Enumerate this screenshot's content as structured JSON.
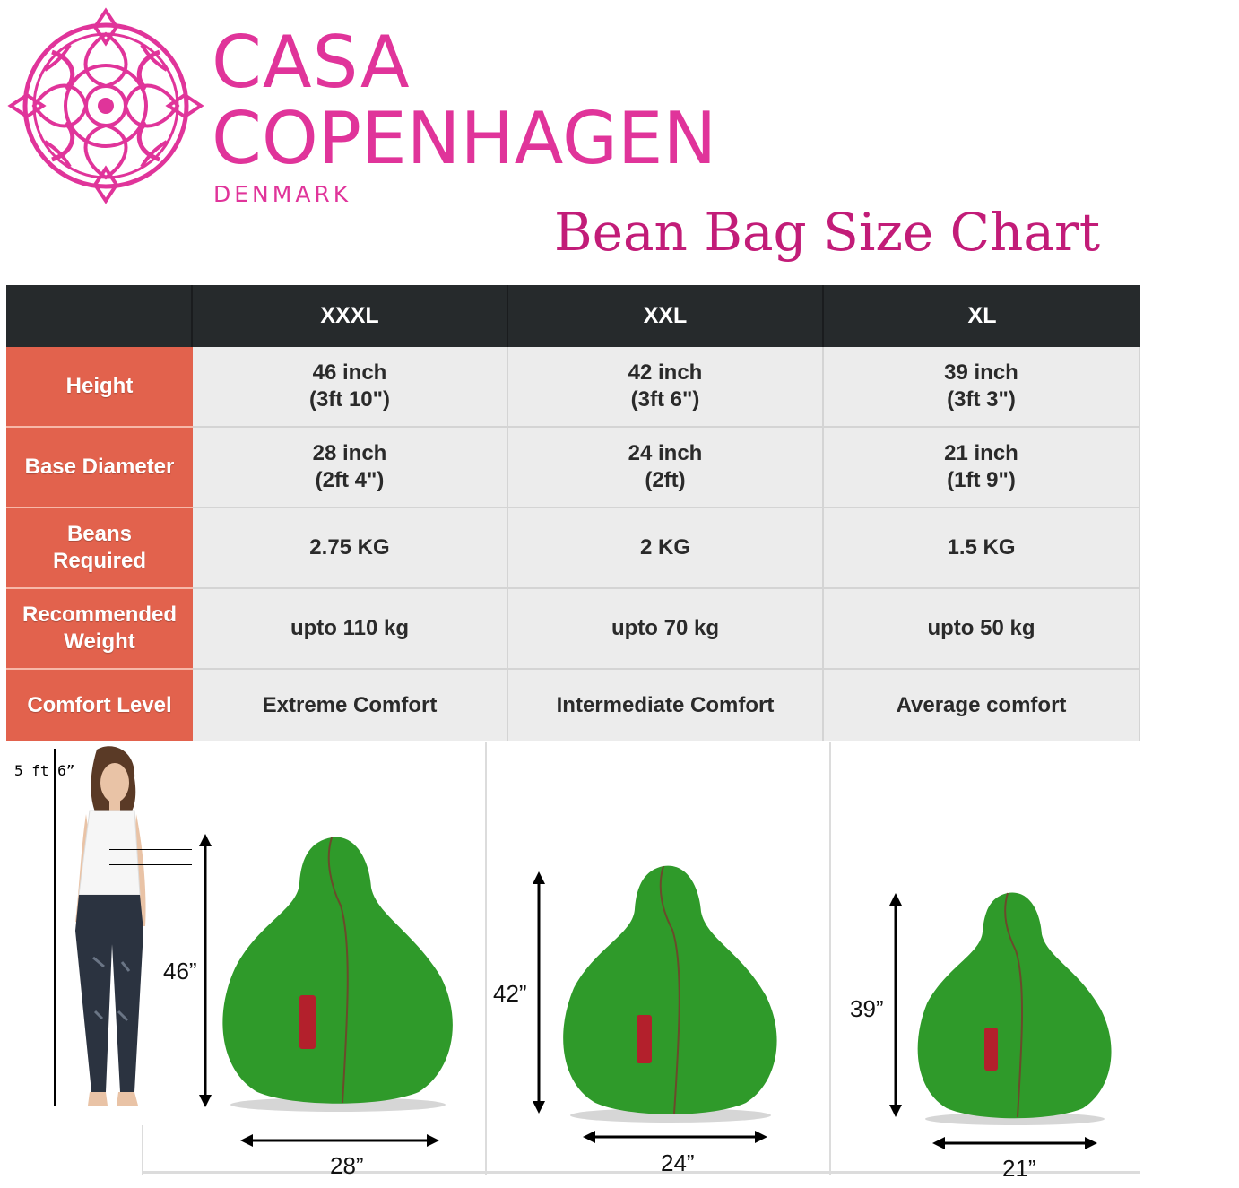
{
  "brand": {
    "line1": "CASA",
    "line2": "COPENHAGEN",
    "line3": "DENMARK",
    "logo_icon": "ornamental-medallion-icon",
    "color": "#e0349a"
  },
  "title": "Bean Bag Size Chart",
  "table": {
    "columns": [
      "XXXL",
      "XXL",
      "XL"
    ],
    "rows": [
      {
        "label": "Height",
        "cells": [
          [
            "46 inch",
            "(3ft 10\")"
          ],
          [
            "42 inch",
            "(3ft 6\")"
          ],
          [
            "39 inch",
            "(3ft 3\")"
          ]
        ]
      },
      {
        "label": "Base Diameter",
        "cells": [
          [
            "28 inch",
            "(2ft 4\")"
          ],
          [
            "24 inch",
            "(2ft)"
          ],
          [
            "21 inch",
            "(1ft 9\")"
          ]
        ]
      },
      {
        "label": "Beans Required",
        "cells": [
          [
            "2.75 KG"
          ],
          [
            "2 KG"
          ],
          [
            "1.5 KG"
          ]
        ]
      },
      {
        "label": "Recommended Weight",
        "cells": [
          [
            "upto 110 kg"
          ],
          [
            "upto 70 kg"
          ],
          [
            "upto 50 kg"
          ]
        ]
      },
      {
        "label": "Comfort Level",
        "cells": [
          [
            "Extreme Comfort"
          ],
          [
            "Intermediate Comfort"
          ],
          [
            "Average comfort"
          ]
        ]
      }
    ],
    "colors": {
      "header": "#262a2c",
      "label": "#e2624d",
      "cell": "#ececec"
    }
  },
  "illustration": {
    "person_height": "5 ft 6”",
    "bags": [
      {
        "height": "46”",
        "width": "28”"
      },
      {
        "height": "42”",
        "width": "24”"
      },
      {
        "height": "39”",
        "width": "21”"
      }
    ],
    "bag_color": "#2f9a2a"
  }
}
